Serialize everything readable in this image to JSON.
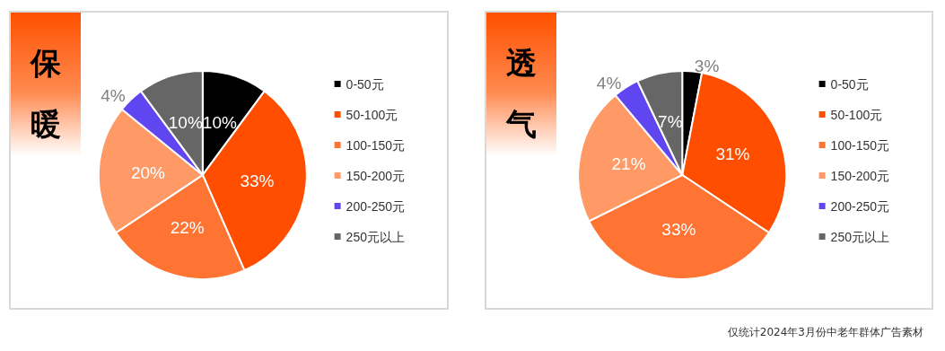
{
  "chart_data": [
    {
      "type": "pie",
      "title": "保暖",
      "categories": [
        "0-50元",
        "50-100元",
        "100-150元",
        "150-200元",
        "200-250元",
        "250元以上"
      ],
      "values": [
        10,
        33,
        22,
        20,
        4,
        10
      ],
      "value_labels": [
        "10%",
        "33%",
        "22%",
        "20%",
        "4%",
        "10%"
      ],
      "colors": [
        "#000000",
        "#ff4e00",
        "#ff7433",
        "#ff9966",
        "#5f46f0",
        "#666666"
      ],
      "legend": "right"
    },
    {
      "type": "pie",
      "title": "透气",
      "categories": [
        "0-50元",
        "50-100元",
        "100-150元",
        "150-200元",
        "200-250元",
        "250元以上"
      ],
      "values": [
        3,
        31,
        33,
        21,
        4,
        7
      ],
      "value_labels": [
        "3%",
        "31%",
        "33%",
        "21%",
        "4%",
        "7%"
      ],
      "colors": [
        "#000000",
        "#ff4e00",
        "#ff7433",
        "#ff9966",
        "#5f46f0",
        "#666666"
      ],
      "legend": "right",
      "annotations": [
        "仅统计2024年3月份中老年群体广告素材"
      ]
    }
  ]
}
